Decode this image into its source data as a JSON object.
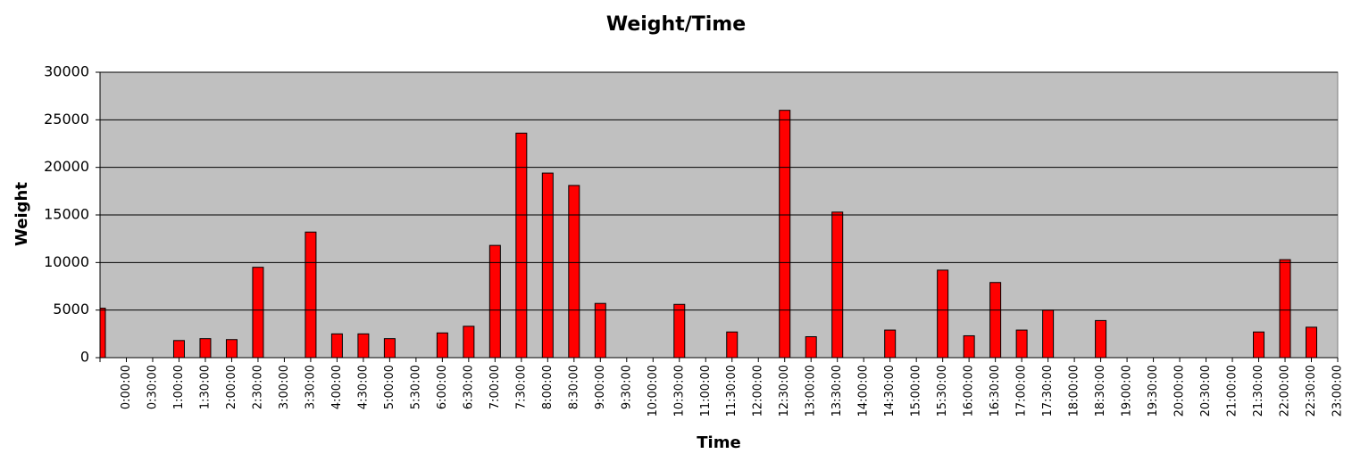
{
  "chart_data": {
    "type": "bar",
    "title": "Weight/Time",
    "x_label": "Time",
    "y_label": "Weight",
    "categories": [
      null,
      "0:00:00",
      "0:30:00",
      "1:00:00",
      "1:30:00",
      "2:00:00",
      "2:30:00",
      "3:00:00",
      "3:30:00",
      "4:00:00",
      "4:30:00",
      "5:00:00",
      "5:30:00",
      "6:00:00",
      "6:30:00",
      "7:00:00",
      "7:30:00",
      "8:00:00",
      "8:30:00",
      "9:00:00",
      "9:30:00",
      "10:00:00",
      "10:30:00",
      "11:00:00",
      "11:30:00",
      "12:00:00",
      "12:30:00",
      "13:00:00",
      "13:30:00",
      "14:00:00",
      "14:30:00",
      "15:00:00",
      "15:30:00",
      "16:00:00",
      "16:30:00",
      "17:00:00",
      "17:30:00",
      "18:00:00",
      "18:30:00",
      "19:00:00",
      "19:30:00",
      "20:00:00",
      "20:30:00",
      "21:00:00",
      "21:30:00",
      "22:00:00",
      "22:30:00",
      "23:00:00"
    ],
    "values": [
      5200,
      0,
      0,
      1800,
      2000,
      1900,
      9500,
      0,
      13200,
      2500,
      2500,
      2000,
      0,
      2600,
      3300,
      11800,
      23600,
      19400,
      18100,
      5700,
      0,
      0,
      5600,
      0,
      2700,
      0,
      26000,
      2200,
      15300,
      0,
      2900,
      0,
      9200,
      2300,
      7900,
      2900,
      5000,
      0,
      3900,
      0,
      0,
      0,
      0,
      0,
      2700,
      10300,
      3200,
      0
    ],
    "color": "#ff0000",
    "ylim": [
      0,
      30000
    ],
    "yticks": [
      0,
      5000,
      10000,
      15000,
      20000,
      25000,
      30000
    ],
    "grid": true
  }
}
